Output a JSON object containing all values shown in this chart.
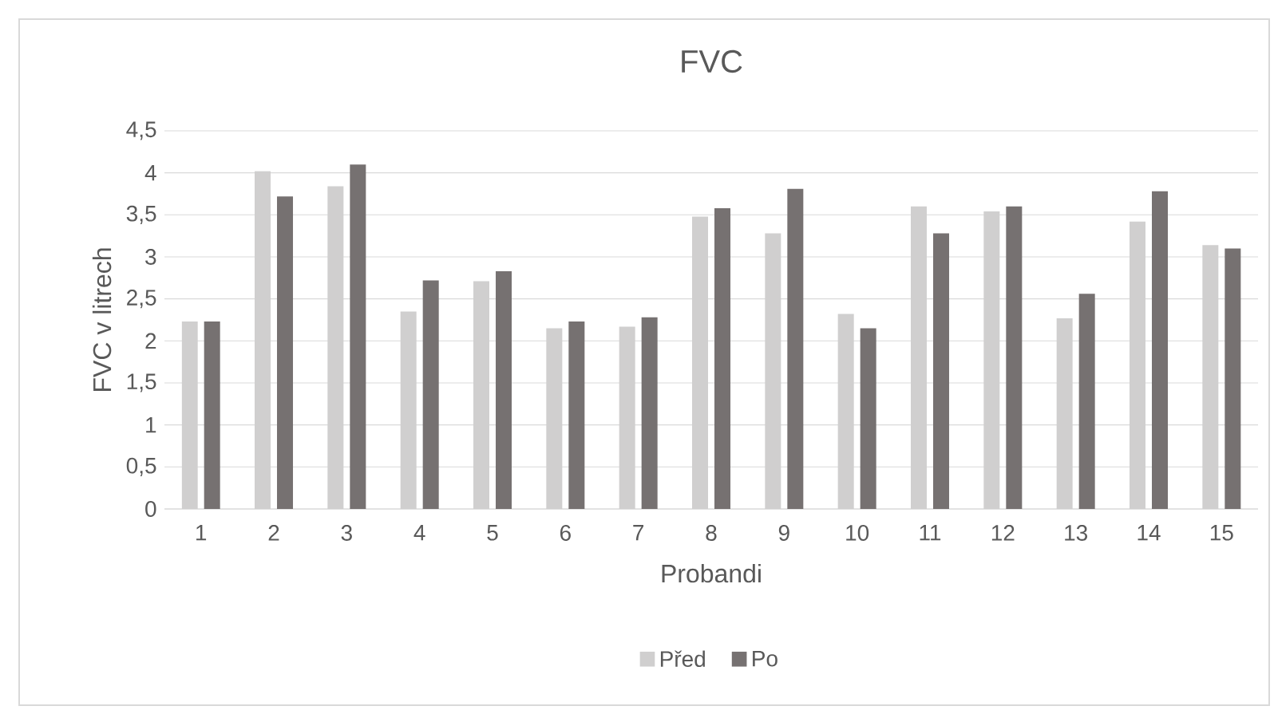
{
  "chart_data": {
    "type": "bar",
    "title": "FVC",
    "xlabel": "Probandi",
    "ylabel": "FVC v litrech",
    "categories": [
      "1",
      "2",
      "3",
      "4",
      "5",
      "6",
      "7",
      "8",
      "9",
      "10",
      "11",
      "12",
      "13",
      "14",
      "15"
    ],
    "series": [
      {
        "name": "Před",
        "color": "#d0cfcf",
        "values": [
          2.23,
          4.02,
          3.84,
          2.35,
          2.71,
          2.15,
          2.17,
          3.48,
          3.28,
          2.32,
          3.6,
          3.54,
          2.27,
          3.42,
          3.14
        ]
      },
      {
        "name": "Po",
        "color": "#767171",
        "values": [
          2.23,
          3.72,
          4.1,
          2.72,
          2.83,
          2.23,
          2.28,
          3.58,
          3.81,
          2.15,
          3.28,
          3.6,
          2.56,
          3.78,
          3.1
        ]
      }
    ],
    "ylim": [
      0,
      4.5
    ],
    "yticks": [
      0,
      {
        "value": 0.5,
        "label": "0,5"
      },
      1,
      {
        "value": 1.5,
        "label": "1,5"
      },
      2,
      {
        "value": 2.5,
        "label": "2,5"
      },
      3,
      {
        "value": 3.5,
        "label": "3,5"
      },
      4,
      {
        "value": 4.5,
        "label": "4,5"
      }
    ],
    "grid": "y",
    "legend": "bottom"
  }
}
